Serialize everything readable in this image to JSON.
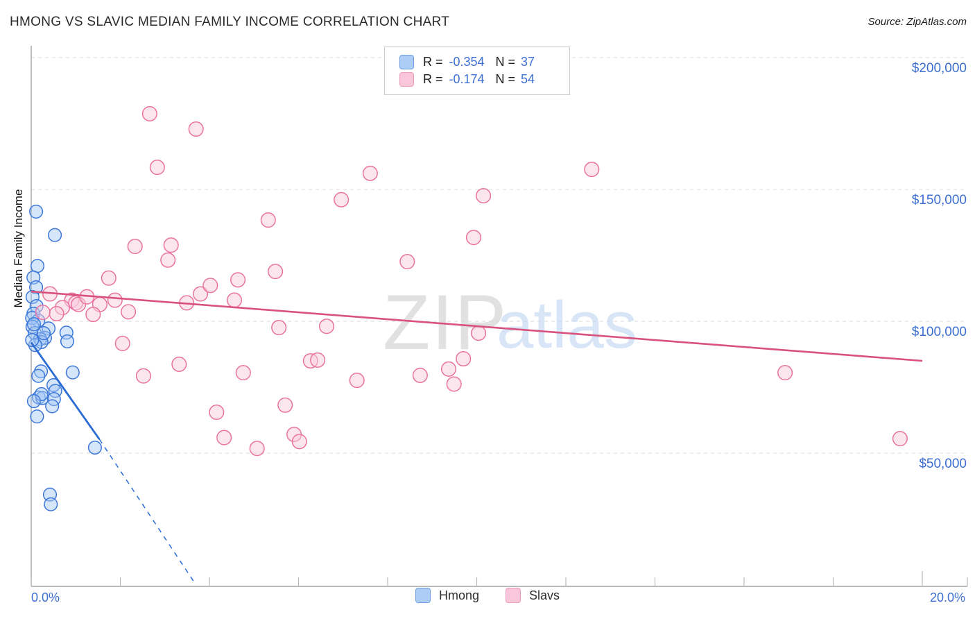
{
  "header": {
    "title": "HMONG VS SLAVIC MEDIAN FAMILY INCOME CORRELATION CHART",
    "source": "Source: ZipAtlas.com"
  },
  "legend_box": {
    "rows": [
      {
        "series": "Hmong",
        "r_label": "R =",
        "r_value": "-0.354",
        "n_label": "N =",
        "n_value": "37"
      },
      {
        "series": "Slavs",
        "r_label": "R =",
        "r_value": "-0.174",
        "n_label": "N =",
        "n_value": "54"
      }
    ]
  },
  "axes": {
    "ylabel": "Median Family Income",
    "x_min_label": "0.0%",
    "x_max_label": "20.0%",
    "y_tick_labels": [
      "$200,000",
      "$150,000",
      "$100,000",
      "$50,000"
    ]
  },
  "bottom_legend": [
    {
      "label": "Hmong"
    },
    {
      "label": "Slavs"
    }
  ],
  "watermark": {
    "zip": "ZIP",
    "atlas": "atlas"
  },
  "colors": {
    "hmong_fill": "rgba(164,199,245,0.45)",
    "hmong_stroke": "#3c77d9",
    "hmong_trend": "#2a6bd4",
    "hmong_swatch": "#aecdf6",
    "hmong_swatch_border": "#6b9fe0",
    "slavs_fill": "rgba(249,205,222,0.5)",
    "slavs_stroke": "#e9739f",
    "slavs_trend": "#d9527e",
    "slavs_swatch": "#f9c6da",
    "slavs_swatch_border": "#ed9cba",
    "value_text": "#3d6fd1",
    "grid": "#d9d9d9",
    "axis": "#a3a3a3",
    "tick": "#b8b8b8",
    "wm_zip": "#d8d8d8",
    "wm_atlas": "#bed5f3"
  },
  "chart_data": {
    "type": "scatter",
    "title": "HMONG VS SLAVIC MEDIAN FAMILY INCOME CORRELATION CHART",
    "xlabel": "",
    "ylabel": "Median Family Income",
    "xlim": [
      0,
      20
    ],
    "ylim": [
      0,
      212000
    ],
    "grid": "horizontal-dashed",
    "legend_position": "bottom-center",
    "x_ticks_pct": [
      0,
      2,
      4,
      6,
      8,
      10,
      12,
      14,
      16,
      18,
      20
    ],
    "y_gridlines": [
      200000,
      150000,
      100000,
      50000
    ],
    "series": [
      {
        "name": "Hmong",
        "R": -0.354,
        "N": 37,
        "trend": {
          "x1": 0,
          "y1": 92000,
          "x2": 1.53,
          "y2": 55300,
          "dash_to_x": 3.7,
          "dash_to_y": 0
        },
        "points": [
          [
            0.11,
            141600
          ],
          [
            0.53,
            132700
          ],
          [
            0.14,
            121000
          ],
          [
            0.05,
            116600
          ],
          [
            0.11,
            112900
          ],
          [
            0.03,
            109200
          ],
          [
            0.12,
            105800
          ],
          [
            0.05,
            102900
          ],
          [
            0.16,
            100300
          ],
          [
            0.02,
            101300
          ],
          [
            0.03,
            97900
          ],
          [
            0.39,
            97300
          ],
          [
            0.08,
            95500
          ],
          [
            0.79,
            95700
          ],
          [
            0.31,
            93700
          ],
          [
            0.2,
            93200
          ],
          [
            0.81,
            92400
          ],
          [
            0.23,
            92100
          ],
          [
            0.06,
            98900
          ],
          [
            0.09,
            91000
          ],
          [
            0.28,
            95500
          ],
          [
            0.02,
            92900
          ],
          [
            0.22,
            81000
          ],
          [
            0.93,
            80600
          ],
          [
            0.16,
            79300
          ],
          [
            0.5,
            75800
          ],
          [
            0.54,
            73600
          ],
          [
            0.17,
            71100
          ],
          [
            0.25,
            70900
          ],
          [
            0.51,
            70500
          ],
          [
            0.47,
            67800
          ],
          [
            0.13,
            63900
          ],
          [
            0.23,
            72400
          ],
          [
            0.06,
            69700
          ],
          [
            1.43,
            52100
          ],
          [
            0.42,
            34300
          ],
          [
            0.44,
            30600
          ]
        ]
      },
      {
        "name": "Slavs",
        "R": -0.174,
        "N": 54,
        "trend": {
          "x1": 0,
          "y1": 111300,
          "x2": 20,
          "y2": 85000
        },
        "points": [
          [
            0.42,
            110400
          ],
          [
            0.91,
            108000
          ],
          [
            1.0,
            107000
          ],
          [
            1.06,
            106400
          ],
          [
            0.7,
            105200
          ],
          [
            0.57,
            102900
          ],
          [
            0.26,
            103400
          ],
          [
            1.25,
            109300
          ],
          [
            1.54,
            106400
          ],
          [
            1.88,
            108000
          ],
          [
            1.39,
            102600
          ],
          [
            2.18,
            103600
          ],
          [
            1.74,
            116400
          ],
          [
            2.05,
            91600
          ],
          [
            2.52,
            79300
          ],
          [
            3.32,
            83700
          ],
          [
            3.49,
            107000
          ],
          [
            3.8,
            110400
          ],
          [
            4.02,
            113600
          ],
          [
            4.64,
            115700
          ],
          [
            4.56,
            108000
          ],
          [
            5.48,
            118900
          ],
          [
            5.56,
            97600
          ],
          [
            6.63,
            98100
          ],
          [
            2.66,
            178700
          ],
          [
            3.7,
            172900
          ],
          [
            2.83,
            158400
          ],
          [
            7.61,
            156100
          ],
          [
            6.96,
            146100
          ],
          [
            5.32,
            138400
          ],
          [
            2.33,
            128400
          ],
          [
            3.14,
            128900
          ],
          [
            3.07,
            123200
          ],
          [
            8.44,
            122600
          ],
          [
            4.76,
            80500
          ],
          [
            6.27,
            85000
          ],
          [
            6.43,
            85300
          ],
          [
            7.31,
            77600
          ],
          [
            8.73,
            79500
          ],
          [
            9.37,
            81900
          ],
          [
            9.7,
            85800
          ],
          [
            9.49,
            76200
          ],
          [
            10.04,
            95500
          ],
          [
            9.93,
            131800
          ],
          [
            10.15,
            147600
          ],
          [
            12.58,
            157600
          ],
          [
            16.92,
            80500
          ],
          [
            19.5,
            55500
          ],
          [
            4.16,
            65500
          ],
          [
            4.33,
            55900
          ],
          [
            5.07,
            51800
          ],
          [
            5.7,
            68200
          ],
          [
            5.9,
            57100
          ],
          [
            6.02,
            54400
          ]
        ]
      }
    ]
  }
}
